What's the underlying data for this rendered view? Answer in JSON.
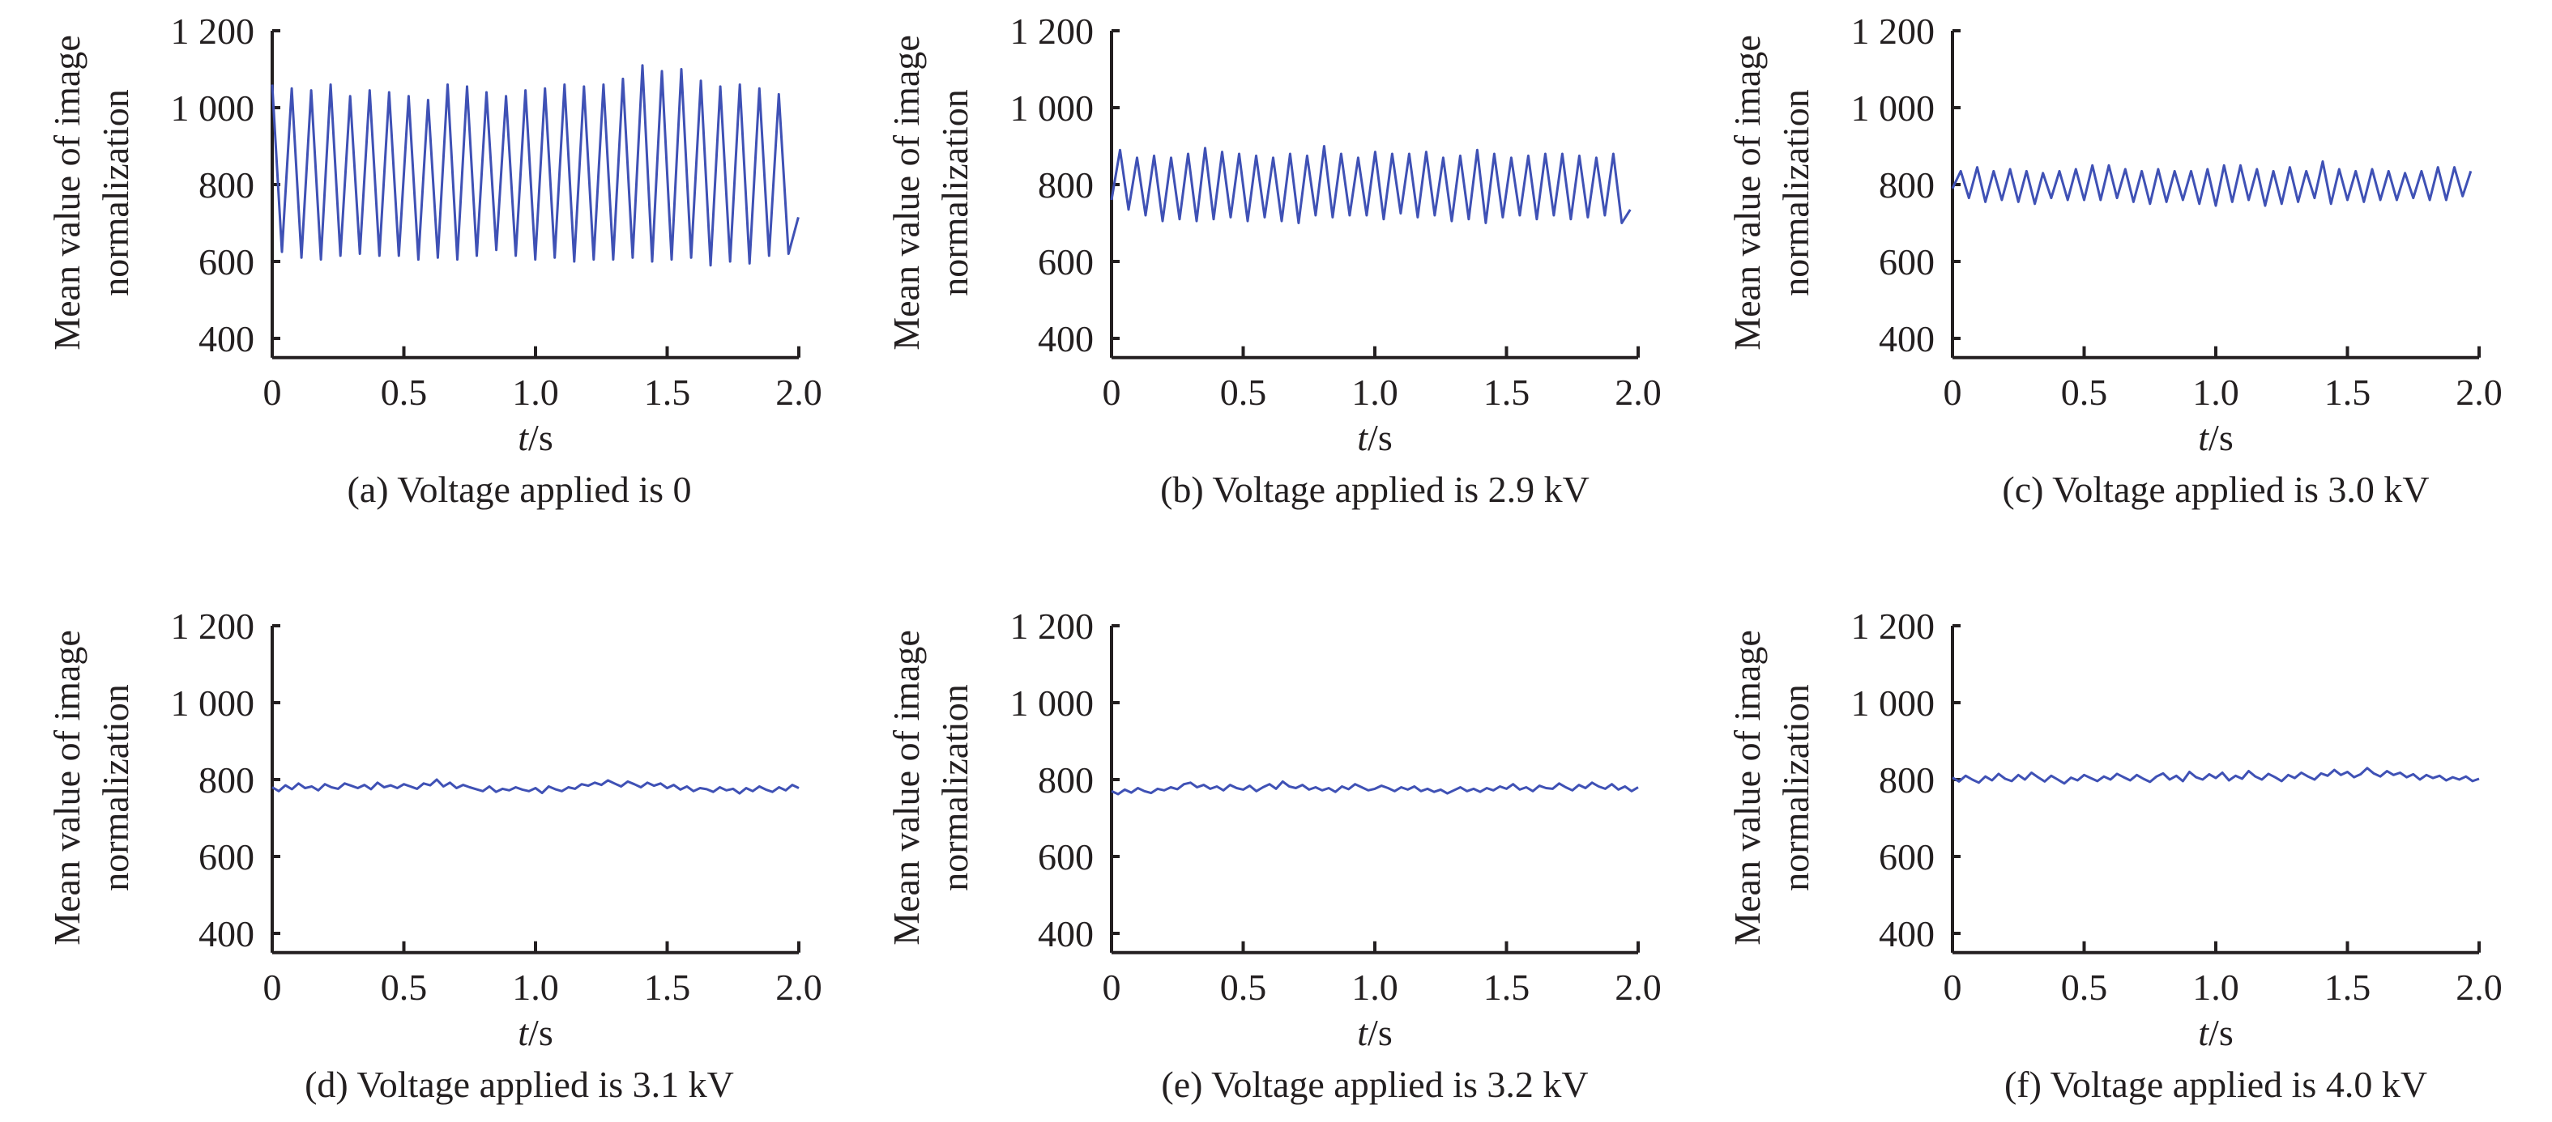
{
  "chart_data": [
    {
      "type": "line",
      "panel": "a",
      "caption": "(a) Voltage applied is 0",
      "ylabel": [
        "Mean value of image",
        "normalization"
      ],
      "xlabel_var": "t",
      "xlabel_unit": "/s",
      "xlim": [
        0,
        2.0
      ],
      "ylim": [
        350,
        1200
      ],
      "xticks": [
        "0",
        "0.5",
        "1.0",
        "1.5",
        "2.0"
      ],
      "yticks": [
        "1 200",
        "1 000",
        "800",
        "600",
        "400"
      ],
      "ytick_values": [
        1200,
        1000,
        800,
        600,
        400
      ],
      "xtick_values": [
        0,
        0.5,
        1.0,
        1.5,
        2.0
      ],
      "series": [
        {
          "color": "#3f51b5",
          "t_step": 0.037,
          "values": [
            1060,
            625,
            1050,
            610,
            1045,
            605,
            1060,
            615,
            1030,
            620,
            1045,
            615,
            1040,
            615,
            1030,
            605,
            1020,
            610,
            1060,
            605,
            1055,
            615,
            1040,
            630,
            1030,
            615,
            1045,
            605,
            1050,
            610,
            1060,
            600,
            1055,
            605,
            1060,
            605,
            1075,
            610,
            1110,
            600,
            1095,
            605,
            1100,
            610,
            1070,
            590,
            1055,
            600,
            1060,
            595,
            1050,
            615,
            1035,
            620,
            715
          ]
        }
      ]
    },
    {
      "type": "line",
      "panel": "b",
      "caption": "(b) Voltage applied is 2.9 kV",
      "ylabel": [
        "Mean value of image",
        "normalization"
      ],
      "xlabel_var": "t",
      "xlabel_unit": "/s",
      "xlim": [
        0,
        2.0
      ],
      "ylim": [
        350,
        1200
      ],
      "xticks": [
        "0",
        "0.5",
        "1.0",
        "1.5",
        "2.0"
      ],
      "yticks": [
        "1 200",
        "1 000",
        "800",
        "600",
        "400"
      ],
      "ytick_values": [
        1200,
        1000,
        800,
        600,
        400
      ],
      "xtick_values": [
        0,
        0.5,
        1.0,
        1.5,
        2.0
      ],
      "series": [
        {
          "color": "#3f51b5",
          "t_step": 0.0323,
          "values": [
            760,
            890,
            735,
            870,
            720,
            875,
            705,
            870,
            710,
            880,
            705,
            895,
            710,
            885,
            715,
            880,
            705,
            875,
            715,
            870,
            705,
            880,
            700,
            875,
            720,
            900,
            715,
            880,
            720,
            870,
            720,
            885,
            710,
            880,
            725,
            880,
            715,
            885,
            720,
            870,
            705,
            875,
            710,
            890,
            700,
            880,
            715,
            870,
            720,
            875,
            710,
            880,
            720,
            880,
            710,
            875,
            715,
            870,
            720,
            880,
            700,
            735
          ]
        }
      ]
    },
    {
      "type": "line",
      "panel": "c",
      "caption": "(c) Voltage applied is 3.0 kV",
      "ylabel": [
        "Mean value of image",
        "normalization"
      ],
      "xlabel_var": "t",
      "xlabel_unit": "/s",
      "xlim": [
        0,
        2.0
      ],
      "ylim": [
        350,
        1200
      ],
      "xticks": [
        "0",
        "0.5",
        "1.0",
        "1.5",
        "2.0"
      ],
      "yticks": [
        "1 200",
        "1 000",
        "800",
        "600",
        "400"
      ],
      "ytick_values": [
        1200,
        1000,
        800,
        600,
        400
      ],
      "xtick_values": [
        0,
        0.5,
        1.0,
        1.5,
        2.0
      ],
      "series": [
        {
          "color": "#3f51b5",
          "t_step": 0.03125,
          "values": [
            790,
            835,
            765,
            845,
            755,
            835,
            760,
            840,
            755,
            835,
            750,
            830,
            765,
            835,
            760,
            840,
            760,
            850,
            760,
            850,
            765,
            840,
            755,
            835,
            750,
            840,
            755,
            835,
            760,
            835,
            750,
            840,
            745,
            850,
            755,
            850,
            760,
            840,
            745,
            835,
            750,
            845,
            755,
            835,
            765,
            860,
            750,
            840,
            760,
            835,
            755,
            840,
            760,
            835,
            760,
            830,
            765,
            835,
            760,
            845,
            760,
            845,
            770,
            835
          ]
        }
      ]
    },
    {
      "type": "line",
      "panel": "d",
      "caption": "(d) Voltage applied is 3.1 kV",
      "ylabel": [
        "Mean value of image",
        "normalization"
      ],
      "xlabel_var": "t",
      "xlabel_unit": "/s",
      "xlim": [
        0,
        2.0
      ],
      "ylim": [
        350,
        1200
      ],
      "xticks": [
        "0",
        "0.5",
        "1.0",
        "1.5",
        "2.0"
      ],
      "yticks": [
        "1 200",
        "1 000",
        "800",
        "600",
        "400"
      ],
      "ytick_values": [
        1200,
        1000,
        800,
        600,
        400
      ],
      "xtick_values": [
        0,
        0.5,
        1.0,
        1.5,
        2.0
      ],
      "series": [
        {
          "color": "#3f51b5",
          "t_step": 0.025,
          "values": [
            780,
            770,
            785,
            775,
            790,
            778,
            782,
            772,
            788,
            780,
            776,
            790,
            784,
            778,
            786,
            775,
            792,
            780,
            785,
            778,
            788,
            782,
            776,
            790,
            785,
            800,
            782,
            792,
            778,
            786,
            780,
            775,
            770,
            782,
            768,
            776,
            772,
            780,
            774,
            770,
            778,
            765,
            782,
            775,
            770,
            780,
            776,
            788,
            784,
            792,
            786,
            798,
            790,
            782,
            795,
            788,
            780,
            792,
            784,
            790,
            778,
            786,
            774,
            782,
            770,
            778,
            775,
            768,
            780,
            772,
            776,
            764,
            778,
            770,
            782,
            774,
            768,
            780,
            772,
            786,
            778
          ]
        }
      ]
    },
    {
      "type": "line",
      "panel": "e",
      "caption": "(e) Voltage applied is 3.2 kV",
      "ylabel": [
        "Mean value of image",
        "normalization"
      ],
      "xlabel_var": "t",
      "xlabel_unit": "/s",
      "xlim": [
        0,
        2.0
      ],
      "ylim": [
        350,
        1200
      ],
      "xticks": [
        "0",
        "0.5",
        "1.0",
        "1.5",
        "2.0"
      ],
      "yticks": [
        "1 200",
        "1 000",
        "800",
        "600",
        "400"
      ],
      "ytick_values": [
        1200,
        1000,
        800,
        600,
        400
      ],
      "xtick_values": [
        0,
        0.5,
        1.0,
        1.5,
        2.0
      ],
      "series": [
        {
          "color": "#3f51b5",
          "t_step": 0.025,
          "values": [
            770,
            762,
            774,
            766,
            778,
            770,
            765,
            776,
            772,
            780,
            775,
            788,
            792,
            780,
            786,
            776,
            782,
            772,
            786,
            778,
            774,
            784,
            770,
            780,
            788,
            776,
            795,
            782,
            778,
            786,
            774,
            780,
            772,
            778,
            768,
            782,
            775,
            788,
            780,
            772,
            776,
            784,
            778,
            770,
            780,
            774,
            782,
            770,
            776,
            768,
            774,
            764,
            772,
            780,
            770,
            776,
            768,
            778,
            772,
            782,
            776,
            788,
            774,
            780,
            770,
            784,
            778,
            776,
            790,
            780,
            772,
            786,
            778,
            792,
            782,
            776,
            788,
            774,
            782,
            770,
            780
          ]
        }
      ]
    },
    {
      "type": "line",
      "panel": "f",
      "caption": "(f) Voltage applied is 4.0 kV",
      "ylabel": [
        "Mean value of image",
        "normalization"
      ],
      "xlabel_var": "t",
      "xlabel_unit": "/s",
      "xlim": [
        0,
        2.0
      ],
      "ylim": [
        350,
        1200
      ],
      "xticks": [
        "0",
        "0.5",
        "1.0",
        "1.5",
        "2.0"
      ],
      "yticks": [
        "1 200",
        "1 000",
        "800",
        "600",
        "400"
      ],
      "ytick_values": [
        1200,
        1000,
        800,
        600,
        400
      ],
      "xtick_values": [
        0,
        0.5,
        1.0,
        1.5,
        2.0
      ],
      "series": [
        {
          "color": "#3f51b5",
          "t_step": 0.025,
          "values": [
            805,
            795,
            810,
            800,
            792,
            808,
            798,
            815,
            802,
            796,
            812,
            800,
            818,
            806,
            795,
            810,
            800,
            790,
            805,
            798,
            812,
            804,
            796,
            808,
            800,
            815,
            806,
            798,
            812,
            802,
            794,
            808,
            816,
            800,
            810,
            796,
            820,
            806,
            800,
            814,
            804,
            818,
            798,
            810,
            802,
            822,
            808,
            800,
            815,
            806,
            796,
            812,
            804,
            818,
            808,
            800,
            816,
            810,
            825,
            812,
            820,
            806,
            814,
            830,
            816,
            808,
            822,
            812,
            818,
            806,
            814,
            800,
            812,
            804,
            810,
            798,
            806,
            800,
            808,
            796,
            802
          ]
        }
      ]
    }
  ]
}
